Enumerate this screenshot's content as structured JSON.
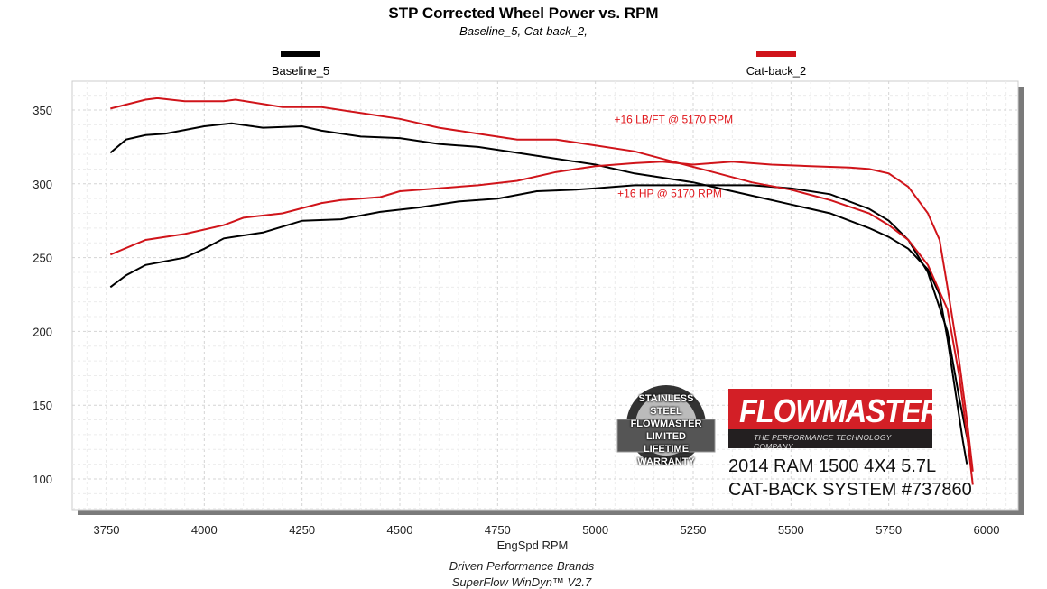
{
  "chart_data": {
    "type": "line",
    "title": "STP Corrected Wheel Power vs. RPM",
    "subtitle": "Baseline_5, Cat-back_2,",
    "xlabel": "EngSpd  RPM",
    "ylabel": "",
    "xlim": [
      3660,
      6085
    ],
    "ylim": [
      79,
      370
    ],
    "grid": true,
    "legend": "top",
    "x_ticks": [
      "3750",
      "4000",
      "4250",
      "4500",
      "4750",
      "5000",
      "5250",
      "5500",
      "5750",
      "6000"
    ],
    "y_ticks": [
      "100",
      "150",
      "200",
      "250",
      "300",
      "350"
    ],
    "series": [
      {
        "name": "Baseline_5",
        "color": "#000000",
        "curve": "torque",
        "x": [
          3760,
          3800,
          3850,
          3900,
          4000,
          4070,
          4150,
          4250,
          4300,
          4400,
          4500,
          4600,
          4700,
          4800,
          4900,
          5000,
          5100,
          5200,
          5250,
          5300,
          5400,
          5500,
          5600,
          5700,
          5750,
          5800,
          5850,
          5880,
          5900,
          5920,
          5940,
          5950
        ],
        "y": [
          321,
          330,
          333,
          334,
          339,
          341,
          338,
          339,
          336,
          332,
          331,
          327,
          325,
          321,
          317,
          313,
          307,
          303,
          301,
          298,
          292,
          286,
          280,
          270,
          264,
          256,
          242,
          225,
          195,
          160,
          125,
          110
        ]
      },
      {
        "name": "Baseline_5",
        "color": "#000000",
        "curve": "power",
        "x": [
          3760,
          3800,
          3850,
          3950,
          4000,
          4050,
          4150,
          4250,
          4350,
          4450,
          4550,
          4650,
          4750,
          4850,
          4950,
          5000,
          5100,
          5200,
          5300,
          5400,
          5500,
          5600,
          5700,
          5750,
          5800,
          5850,
          5900,
          5930,
          5960
        ],
        "y": [
          230,
          238,
          245,
          250,
          256,
          263,
          267,
          275,
          276,
          281,
          284,
          288,
          290,
          295,
          296,
          297,
          299,
          299,
          299,
          299,
          297,
          293,
          283,
          275,
          262,
          240,
          200,
          155,
          115
        ]
      },
      {
        "name": "Cat-back_2",
        "color": "#d0141a",
        "curve": "torque",
        "x": [
          3760,
          3850,
          3880,
          3950,
          4050,
          4080,
          4200,
          4300,
          4400,
          4500,
          4600,
          4700,
          4800,
          4900,
          5000,
          5100,
          5200,
          5300,
          5400,
          5500,
          5600,
          5700,
          5750,
          5800,
          5850,
          5900,
          5930,
          5950,
          5965
        ],
        "y": [
          351,
          357,
          358,
          356,
          356,
          357,
          352,
          352,
          348,
          344,
          338,
          334,
          330,
          330,
          326,
          322,
          315,
          308,
          301,
          296,
          289,
          280,
          272,
          262,
          245,
          215,
          170,
          130,
          96
        ]
      },
      {
        "name": "Cat-back_2",
        "color": "#d0141a",
        "curve": "power",
        "x": [
          3760,
          3850,
          3950,
          4050,
          4100,
          4200,
          4300,
          4350,
          4450,
          4500,
          4600,
          4700,
          4800,
          4900,
          5000,
          5100,
          5170,
          5250,
          5350,
          5450,
          5550,
          5650,
          5700,
          5750,
          5800,
          5850,
          5880,
          5900,
          5930,
          5950,
          5965
        ],
        "y": [
          252,
          262,
          266,
          272,
          277,
          280,
          287,
          289,
          291,
          295,
          297,
          299,
          302,
          308,
          312,
          314,
          315,
          313,
          315,
          313,
          312,
          311,
          310,
          307,
          298,
          280,
          262,
          230,
          180,
          140,
          105
        ]
      }
    ],
    "annotations": [
      {
        "text": "+16 LB/FT @ 5170 RPM",
        "x": 5200,
        "y": 341
      },
      {
        "text": "+16 HP @ 5170 RPM",
        "x": 5190,
        "y": 291
      }
    ]
  },
  "legend": {
    "baseline": "Baseline_5",
    "catback": "Cat-back_2"
  },
  "footer": {
    "line1": "Driven Performance Brands",
    "line2": "SuperFlow WinDyn™  V2.7"
  },
  "branding": {
    "warranty_badge": "STAINLESS STEEL FLOWMASTER LIMITED LIFETIME WARRANTY",
    "logo": "FLOWMASTER",
    "tagline": "THE PERFORMANCE TECHNOLOGY COMPANY",
    "vehicle": "2014 RAM 1500 4X4 5.7L",
    "system": "CAT-BACK SYSTEM #737860"
  }
}
